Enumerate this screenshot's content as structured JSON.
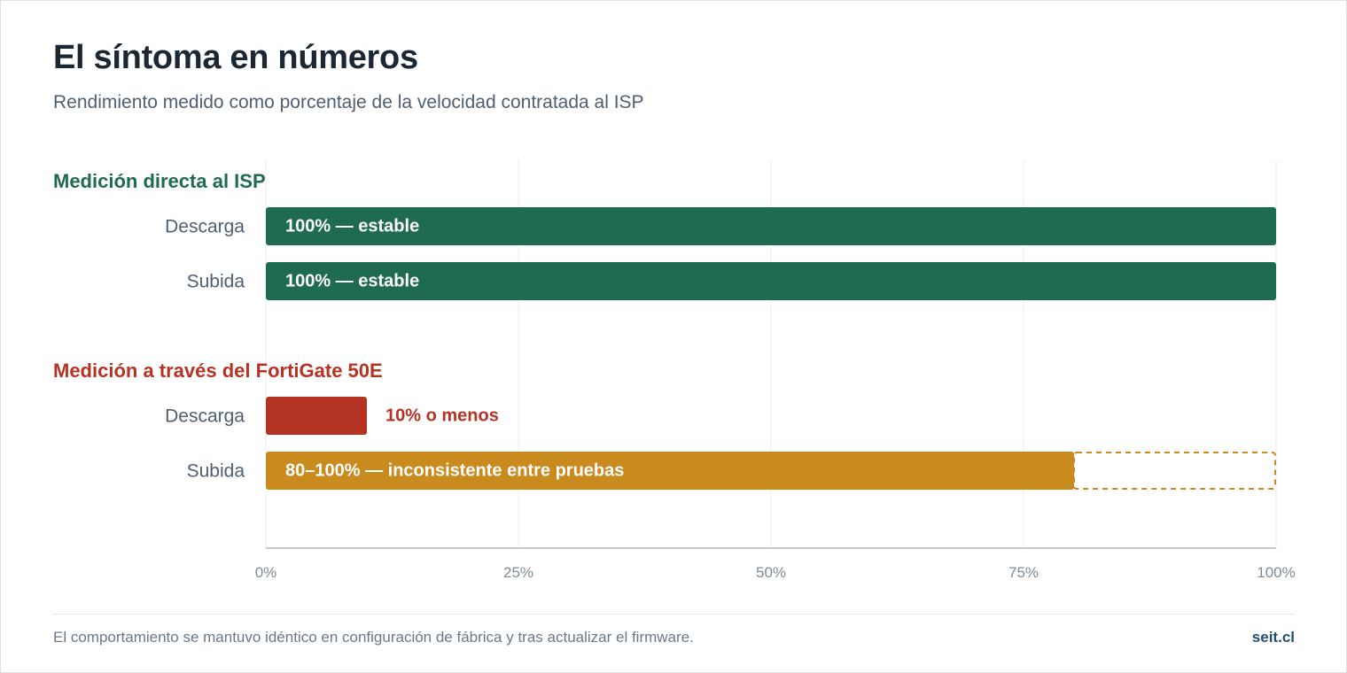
{
  "header": {
    "title": "El síntoma en números",
    "subtitle": "Rendimiento medido como porcentaje de la velocidad contratada al ISP"
  },
  "footer": {
    "note": "El comportamiento se mantuvo idéntico en configuración de fábrica y tras actualizar el firmware.",
    "brand": "seit.cl"
  },
  "colors": {
    "direct": "#1e6b50",
    "direct_heading": "#1e6b50",
    "fortigate_heading": "#b43323",
    "low": "#b43323",
    "variable": "#c98a1e",
    "grid": "#e8ecf0",
    "axis": "#aeb9c4",
    "tick_text": "#7c8b99",
    "row_label": "#4f5f70"
  },
  "chart_data": {
    "type": "bar",
    "orientation": "horizontal",
    "xlim": [
      0,
      100
    ],
    "ticks": [
      0,
      25,
      50,
      75,
      100
    ],
    "tick_labels": [
      "0%",
      "25%",
      "50%",
      "75%",
      "100%"
    ],
    "grid": true,
    "groups": [
      {
        "heading": "Medición directa al ISP",
        "color_key": "direct_heading",
        "rows": [
          {
            "label": "Descarga",
            "value": 100,
            "color_key": "direct",
            "data_label": "100% — estable",
            "label_inside": true
          },
          {
            "label": "Subida",
            "value": 100,
            "color_key": "direct",
            "data_label": "100% — estable",
            "label_inside": true
          }
        ]
      },
      {
        "heading": "Medición a través del FortiGate 50E",
        "color_key": "fortigate_heading",
        "rows": [
          {
            "label": "Descarga",
            "value": 10,
            "color_key": "low",
            "data_label": "10% o menos",
            "label_inside": false
          },
          {
            "label": "Subida",
            "value": 80,
            "range_max": 100,
            "color_key": "variable",
            "data_label": "80–100% — inconsistente entre pruebas",
            "label_inside": true
          }
        ]
      }
    ]
  }
}
